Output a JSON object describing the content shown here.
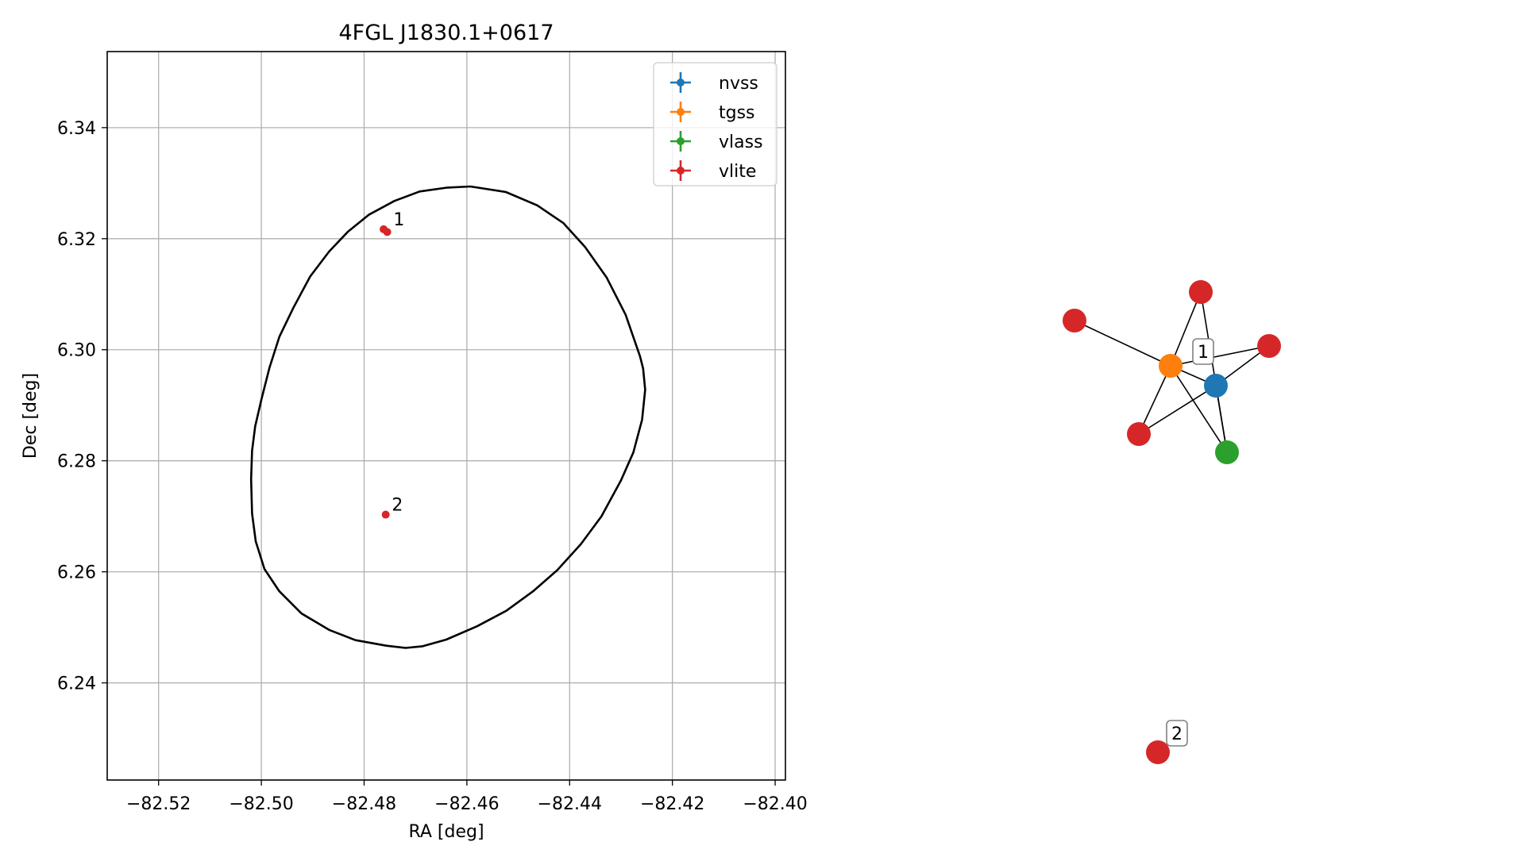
{
  "chart_data": [
    {
      "type": "scatter",
      "title": "4FGL J1830.1+0617",
      "xlabel": "RA [deg]",
      "ylabel": "Dec [deg]",
      "xlim": [
        -82.53,
        -82.398
      ],
      "ylim": [
        6.2225,
        6.3537
      ],
      "xticks": [
        -82.52,
        -82.5,
        -82.48,
        -82.46,
        -82.44,
        -82.42,
        -82.4
      ],
      "xtick_labels": [
        "−82.52",
        "−82.50",
        "−82.48",
        "−82.46",
        "−82.44",
        "−82.42",
        "−82.40"
      ],
      "yticks": [
        6.24,
        6.26,
        6.28,
        6.3,
        6.32,
        6.34
      ],
      "ytick_labels": [
        "6.24",
        "6.26",
        "6.28",
        "6.30",
        "6.32",
        "6.34"
      ],
      "grid": true,
      "legend_position": "top-right",
      "series": [
        {
          "name": "nvss",
          "color": "#1f77b4",
          "points": []
        },
        {
          "name": "tgss",
          "color": "#ff7f0e",
          "points": []
        },
        {
          "name": "vlass",
          "color": "#2ca02c",
          "points": []
        },
        {
          "name": "vlite",
          "color": "#d62728",
          "points": [
            {
              "x": -82.4762,
              "y": 6.3217
            },
            {
              "x": -82.4755,
              "y": 6.3212
            },
            {
              "x": -82.4758,
              "y": 6.2703
            }
          ]
        }
      ],
      "ellipse": {
        "color": "#000000",
        "points": [
          [
            -82.4593,
            6.3294
          ],
          [
            -82.4524,
            6.3284
          ],
          [
            -82.4463,
            6.326
          ],
          [
            -82.4412,
            6.3228
          ],
          [
            -82.437,
            6.3185
          ],
          [
            -82.4328,
            6.313
          ],
          [
            -82.4291,
            6.3063
          ],
          [
            -82.4263,
            6.2988
          ],
          [
            -82.4257,
            6.2966
          ],
          [
            -82.4253,
            6.2928
          ],
          [
            -82.4259,
            6.2874
          ],
          [
            -82.4276,
            6.2815
          ],
          [
            -82.43,
            6.2765
          ],
          [
            -82.4338,
            6.27
          ],
          [
            -82.4378,
            6.265
          ],
          [
            -82.4424,
            6.2603
          ],
          [
            -82.4471,
            6.2565
          ],
          [
            -82.4523,
            6.253
          ],
          [
            -82.458,
            6.2502
          ],
          [
            -82.464,
            6.2478
          ],
          [
            -82.4686,
            6.2466
          ],
          [
            -82.4719,
            6.2463
          ],
          [
            -82.4757,
            6.2467
          ],
          [
            -82.4817,
            6.2477
          ],
          [
            -82.4867,
            6.2495
          ],
          [
            -82.4922,
            6.2525
          ],
          [
            -82.4965,
            6.2565
          ],
          [
            -82.4994,
            6.2605
          ],
          [
            -82.5011,
            6.2655
          ],
          [
            -82.5018,
            6.2705
          ],
          [
            -82.502,
            6.2767
          ],
          [
            -82.5018,
            6.2818
          ],
          [
            -82.5012,
            6.2862
          ],
          [
            -82.5,
            6.291
          ],
          [
            -82.4984,
            6.2968
          ],
          [
            -82.4965,
            6.3023
          ],
          [
            -82.4938,
            6.3075
          ],
          [
            -82.4905,
            6.3132
          ],
          [
            -82.4868,
            6.3177
          ],
          [
            -82.4831,
            6.3213
          ],
          [
            -82.4791,
            6.3243
          ],
          [
            -82.4741,
            6.3268
          ],
          [
            -82.4692,
            6.3285
          ],
          [
            -82.4638,
            6.3292
          ],
          [
            -82.4593,
            6.3294
          ]
        ]
      },
      "annotations": [
        {
          "text": "1",
          "x": -82.4743,
          "y": 6.3224
        },
        {
          "text": "2",
          "x": -82.4746,
          "y": 6.271
        }
      ]
    },
    {
      "type": "network",
      "nodes": [
        {
          "id": "vlite-top",
          "color": "#d62728"
        },
        {
          "id": "vlite-left",
          "color": "#d62728"
        },
        {
          "id": "vlite-right",
          "color": "#d62728"
        },
        {
          "id": "vlite-lower-left",
          "color": "#d62728"
        },
        {
          "id": "tgss-node",
          "color": "#ff7f0e"
        },
        {
          "id": "nvss-node",
          "color": "#1f77b4"
        },
        {
          "id": "vlass-node",
          "color": "#2ca02c"
        },
        {
          "id": "vlite-isolated",
          "color": "#d62728"
        }
      ],
      "edges": [
        [
          "vlite-left",
          "tgss-node"
        ],
        [
          "tgss-node",
          "nvss-node"
        ],
        [
          "tgss-node",
          "vlite-right"
        ],
        [
          "tgss-node",
          "vlite-top"
        ],
        [
          "tgss-node",
          "vlite-lower-left"
        ],
        [
          "tgss-node",
          "vlass-node"
        ],
        [
          "vlite-top",
          "vlass-node"
        ],
        [
          "vlite-right",
          "nvss-node"
        ],
        [
          "vlite-lower-left",
          "nvss-node"
        ],
        [
          "nvss-node",
          "vlass-node"
        ]
      ],
      "labels": [
        {
          "text": "1"
        },
        {
          "text": "2"
        }
      ]
    }
  ]
}
